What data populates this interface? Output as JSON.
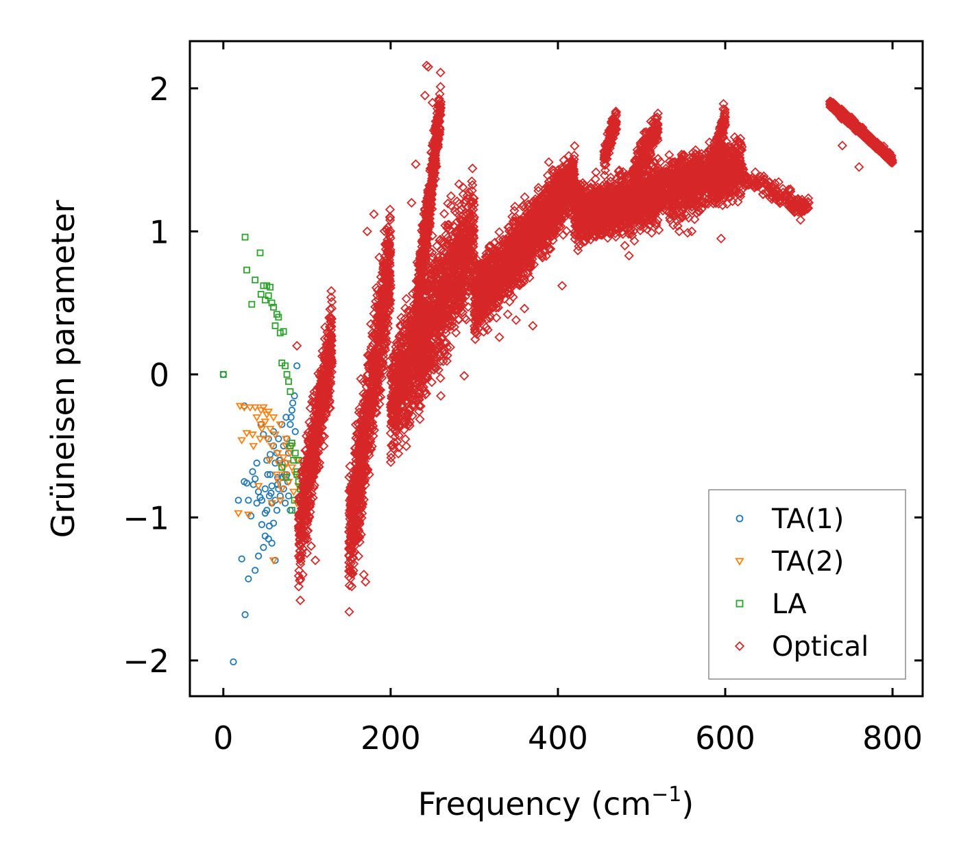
{
  "chart_data": {
    "type": "scatter",
    "title": "",
    "xlabel": "Frequency (cm",
    "xlabel_superscript": "−1",
    "xlabel_suffix": ")",
    "ylabel": "Grüneisen parameter",
    "xlim": [
      -40,
      836
    ],
    "ylim": [
      -2.25,
      2.33
    ],
    "xticks": [
      0,
      200,
      400,
      600,
      800
    ],
    "xtick_labels": [
      "0",
      "200",
      "400",
      "600",
      "800"
    ],
    "yticks": [
      -2,
      -1,
      0,
      1,
      2
    ],
    "ytick_labels": [
      "−2",
      "−1",
      "0",
      "1",
      "2"
    ],
    "grid": false,
    "legend_position": "lower-right",
    "series": [
      {
        "name": "TA(1)",
        "marker": "circle",
        "color": "#1f77b4",
        "x": [
          0,
          12,
          18,
          22,
          25,
          26,
          28,
          30,
          33,
          35,
          36,
          38,
          40,
          40,
          42,
          44,
          45,
          46,
          48,
          48,
          50,
          50,
          52,
          52,
          54,
          54,
          55,
          56,
          56,
          58,
          58,
          60,
          60,
          62,
          62,
          64,
          64,
          65,
          66,
          66,
          68,
          68,
          70,
          70,
          72,
          72,
          74,
          74,
          75,
          76,
          76,
          78,
          78,
          80,
          80,
          82,
          83,
          85,
          86,
          88,
          62,
          58,
          55,
          50,
          46,
          42,
          38,
          30,
          25,
          60,
          70,
          65,
          57,
          53,
          67,
          73,
          77,
          81
        ],
        "y": [
          0,
          -2.01,
          -0.88,
          -1.29,
          -0.22,
          -1.68,
          -0.76,
          -1.43,
          -0.99,
          -0.68,
          -0.77,
          -1.37,
          -0.9,
          -0.62,
          -1.27,
          -0.86,
          -0.35,
          -1.05,
          -0.42,
          -1.21,
          -0.8,
          -1.13,
          -0.6,
          -0.95,
          -0.45,
          -1.15,
          -0.85,
          -0.7,
          -0.56,
          -0.9,
          -0.78,
          -0.4,
          -1.04,
          -0.62,
          -0.88,
          -0.95,
          -0.55,
          -0.72,
          -0.8,
          -0.45,
          -0.6,
          -0.85,
          -0.35,
          -0.72,
          -0.5,
          -0.8,
          -0.62,
          -0.9,
          -0.3,
          -0.7,
          -0.45,
          -0.55,
          -0.85,
          -0.35,
          -0.95,
          -0.25,
          -0.2,
          -0.15,
          -0.4,
          0.06,
          -1.3,
          -1.18,
          -1.06,
          -0.97,
          -0.88,
          -0.82,
          -0.73,
          -0.88,
          -0.75,
          -0.5,
          -0.65,
          -0.77,
          -0.83,
          -0.7,
          -0.6,
          -0.7,
          -0.75,
          -0.3
        ]
      },
      {
        "name": "TA(2)",
        "marker": "triangle-down",
        "color": "#ff7f0e",
        "x": [
          18,
          20,
          22,
          25,
          28,
          30,
          32,
          35,
          36,
          38,
          40,
          42,
          44,
          45,
          46,
          48,
          50,
          52,
          54,
          55,
          56,
          58,
          60,
          62,
          64,
          65,
          66,
          68,
          70,
          72,
          74,
          75,
          76,
          78,
          80,
          82,
          84,
          86,
          88,
          90,
          45,
          52,
          60,
          68,
          75,
          82,
          88,
          58,
          66,
          72
        ],
        "y": [
          -0.97,
          -0.22,
          -0.46,
          -0.23,
          -0.41,
          -0.98,
          -0.23,
          -0.42,
          -0.5,
          -0.23,
          -0.3,
          -0.78,
          -0.45,
          -0.25,
          -0.38,
          -0.23,
          -0.33,
          -0.45,
          -0.26,
          -0.6,
          -0.38,
          -0.5,
          -0.3,
          -0.42,
          -0.7,
          -0.55,
          -0.62,
          -0.35,
          -0.8,
          -0.58,
          -0.7,
          -0.5,
          -0.62,
          -0.75,
          -0.55,
          -0.65,
          -0.82,
          -0.7,
          -0.6,
          -0.78,
          -0.35,
          -0.28,
          -1.3,
          -0.88,
          -0.45,
          -0.5,
          -0.9,
          -0.9,
          -0.75,
          -0.65
        ]
      },
      {
        "name": "LA",
        "marker": "square",
        "color": "#2ca02c",
        "x": [
          0,
          26,
          28,
          34,
          38,
          44,
          45,
          48,
          50,
          52,
          54,
          56,
          58,
          60,
          62,
          64,
          66,
          68,
          70,
          72,
          74,
          76,
          78,
          80,
          82,
          84,
          86,
          88,
          90,
          92,
          94,
          96,
          70,
          75,
          80,
          85,
          90,
          95,
          82,
          88
        ],
        "y": [
          0,
          0.96,
          0.73,
          0.49,
          0.66,
          0.85,
          0.56,
          0.62,
          0.52,
          0.62,
          0.55,
          0.61,
          0.5,
          0.47,
          0.34,
          0.42,
          0.4,
          0.29,
          0.08,
          0.3,
          0.06,
          0.0,
          -0.05,
          -0.12,
          -0.48,
          -0.6,
          -0.55,
          -0.7,
          -0.75,
          -0.8,
          -0.85,
          -0.9,
          -0.65,
          -0.72,
          -0.5,
          -0.88,
          -0.6,
          -0.78,
          -0.95,
          -0.68
        ]
      },
      {
        "name": "Optical",
        "marker": "diamond",
        "color": "#d62728",
        "generator_bands": [
          {
            "x0": 90,
            "x1": 130,
            "y_start": -1.15,
            "y_end": 0.25,
            "spread": 0.55,
            "count": 650
          },
          {
            "x0": 150,
            "x1": 200,
            "y_start": -1.2,
            "y_end": 0.8,
            "spread": 0.7,
            "count": 900
          },
          {
            "x0": 200,
            "x1": 300,
            "y_start": -0.2,
            "y_end": 1.0,
            "spread": 0.7,
            "count": 1500
          },
          {
            "x0": 230,
            "x1": 260,
            "y_start": 0.4,
            "y_end": 1.9,
            "spread": 0.35,
            "count": 500
          },
          {
            "x0": 300,
            "x1": 420,
            "y_start": 0.5,
            "y_end": 1.35,
            "spread": 0.4,
            "count": 1700
          },
          {
            "x0": 420,
            "x1": 620,
            "y_start": 1.1,
            "y_end": 1.45,
            "spread": 0.35,
            "count": 2200
          },
          {
            "x0": 455,
            "x1": 470,
            "y_start": 1.5,
            "y_end": 1.8,
            "spread": 0.15,
            "count": 120
          },
          {
            "x0": 490,
            "x1": 520,
            "y_start": 1.4,
            "y_end": 1.75,
            "spread": 0.2,
            "count": 200
          },
          {
            "x0": 585,
            "x1": 600,
            "y_start": 1.4,
            "y_end": 1.8,
            "spread": 0.2,
            "count": 120
          },
          {
            "x0": 620,
            "x1": 700,
            "y_start": 1.4,
            "y_end": 1.15,
            "spread": 0.12,
            "count": 160
          },
          {
            "x0": 725,
            "x1": 800,
            "y_start": 1.9,
            "y_end": 1.5,
            "spread": 0.05,
            "count": 420
          }
        ],
        "outliers_x": [
          243,
          245,
          241,
          230,
          225,
          250,
          170,
          168,
          180,
          405,
          485,
          480,
          680,
          690,
          700,
          288,
          260,
          172,
          88,
          92,
          95,
          100,
          105,
          110,
          250,
          330,
          340,
          350,
          360,
          370,
          560,
          555,
          595,
          545,
          740,
          760
        ],
        "outliers_y": [
          2.16,
          2.15,
          1.95,
          1.47,
          1.2,
          1.9,
          -1.45,
          -1.4,
          1.12,
          0.62,
          0.83,
          0.9,
          1.15,
          1.08,
          1.2,
          -0.01,
          -0.15,
          1.0,
          0.2,
          -1.58,
          -1.4,
          -1.25,
          -1.2,
          -1.3,
          1.45,
          0.26,
          0.42,
          0.38,
          0.46,
          0.34,
          1.0,
          0.99,
          0.95,
          1.0,
          1.6,
          1.45
        ]
      }
    ]
  }
}
